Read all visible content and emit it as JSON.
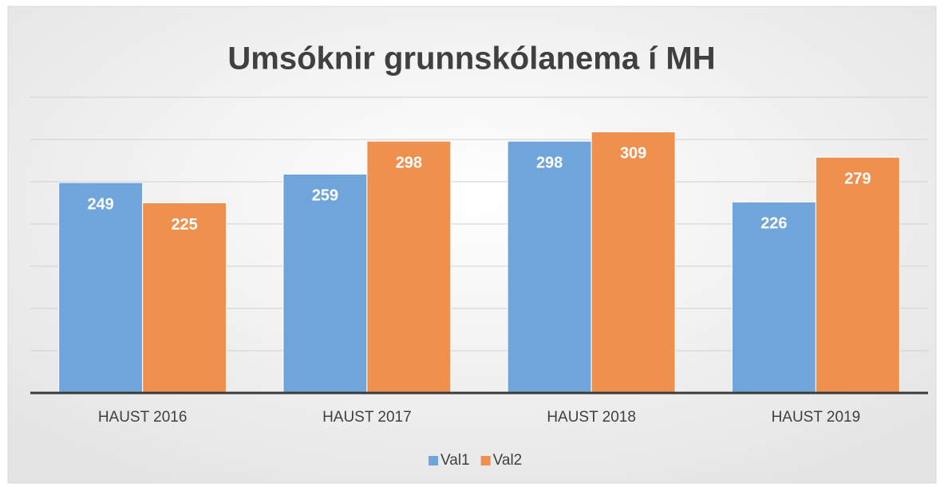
{
  "chart_data": {
    "type": "bar",
    "title": "Umsóknir grunnskólanema í MH",
    "categories": [
      "HAUST 2016",
      "HAUST 2017",
      "HAUST 2018",
      "HAUST 2019"
    ],
    "series": [
      {
        "name": "Val1",
        "color": "#6fa5db",
        "values": [
          249,
          259,
          298,
          226
        ]
      },
      {
        "name": "Val2",
        "color": "#f0904f",
        "values": [
          225,
          298,
          309,
          279
        ]
      }
    ],
    "ylim": [
      0,
      350
    ],
    "yticks": [
      0,
      50,
      100,
      150,
      200,
      250,
      300,
      350
    ],
    "grid": true,
    "legend": "bottom"
  }
}
